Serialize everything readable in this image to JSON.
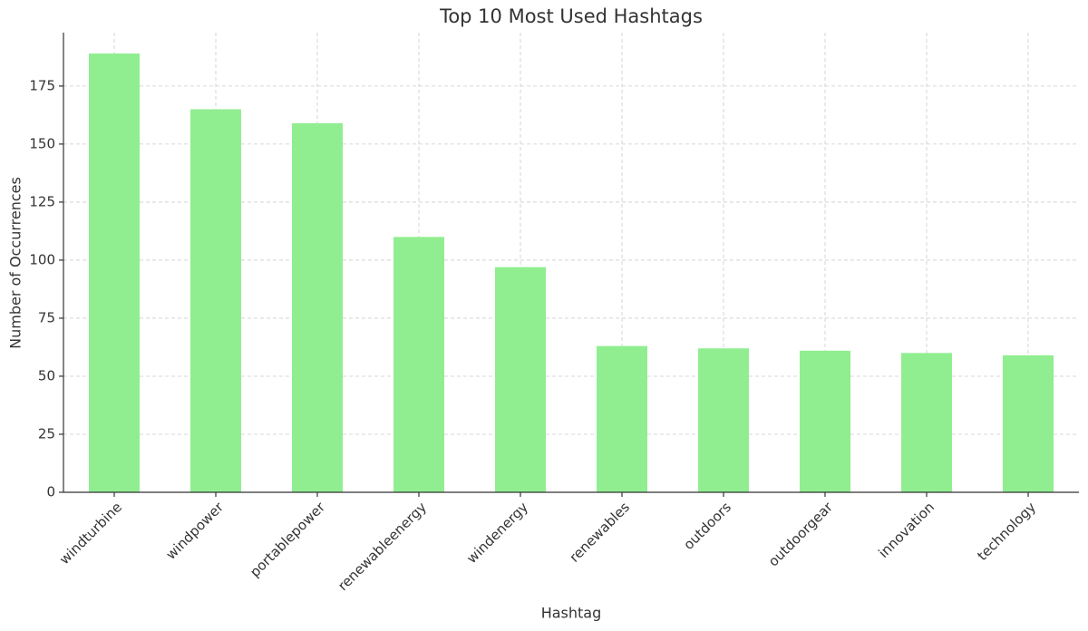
{
  "chart_data": {
    "type": "bar",
    "title": "Top 10 Most Used Hashtags",
    "x_label": "Hashtag",
    "y_label": "Number of Occurrences",
    "categories": [
      "windturbine",
      "windpower",
      "portablepower",
      "renewableenergy",
      "windenergy",
      "renewables",
      "outdoors",
      "outdoorgear",
      "innovation",
      "technology"
    ],
    "values": [
      189,
      165,
      159,
      110,
      97,
      63,
      62,
      61,
      60,
      59
    ],
    "color": "#90ee90",
    "ylim": [
      0,
      198
    ],
    "yticks": [
      0,
      25,
      50,
      75,
      100,
      125,
      150,
      175
    ],
    "grid": true
  }
}
